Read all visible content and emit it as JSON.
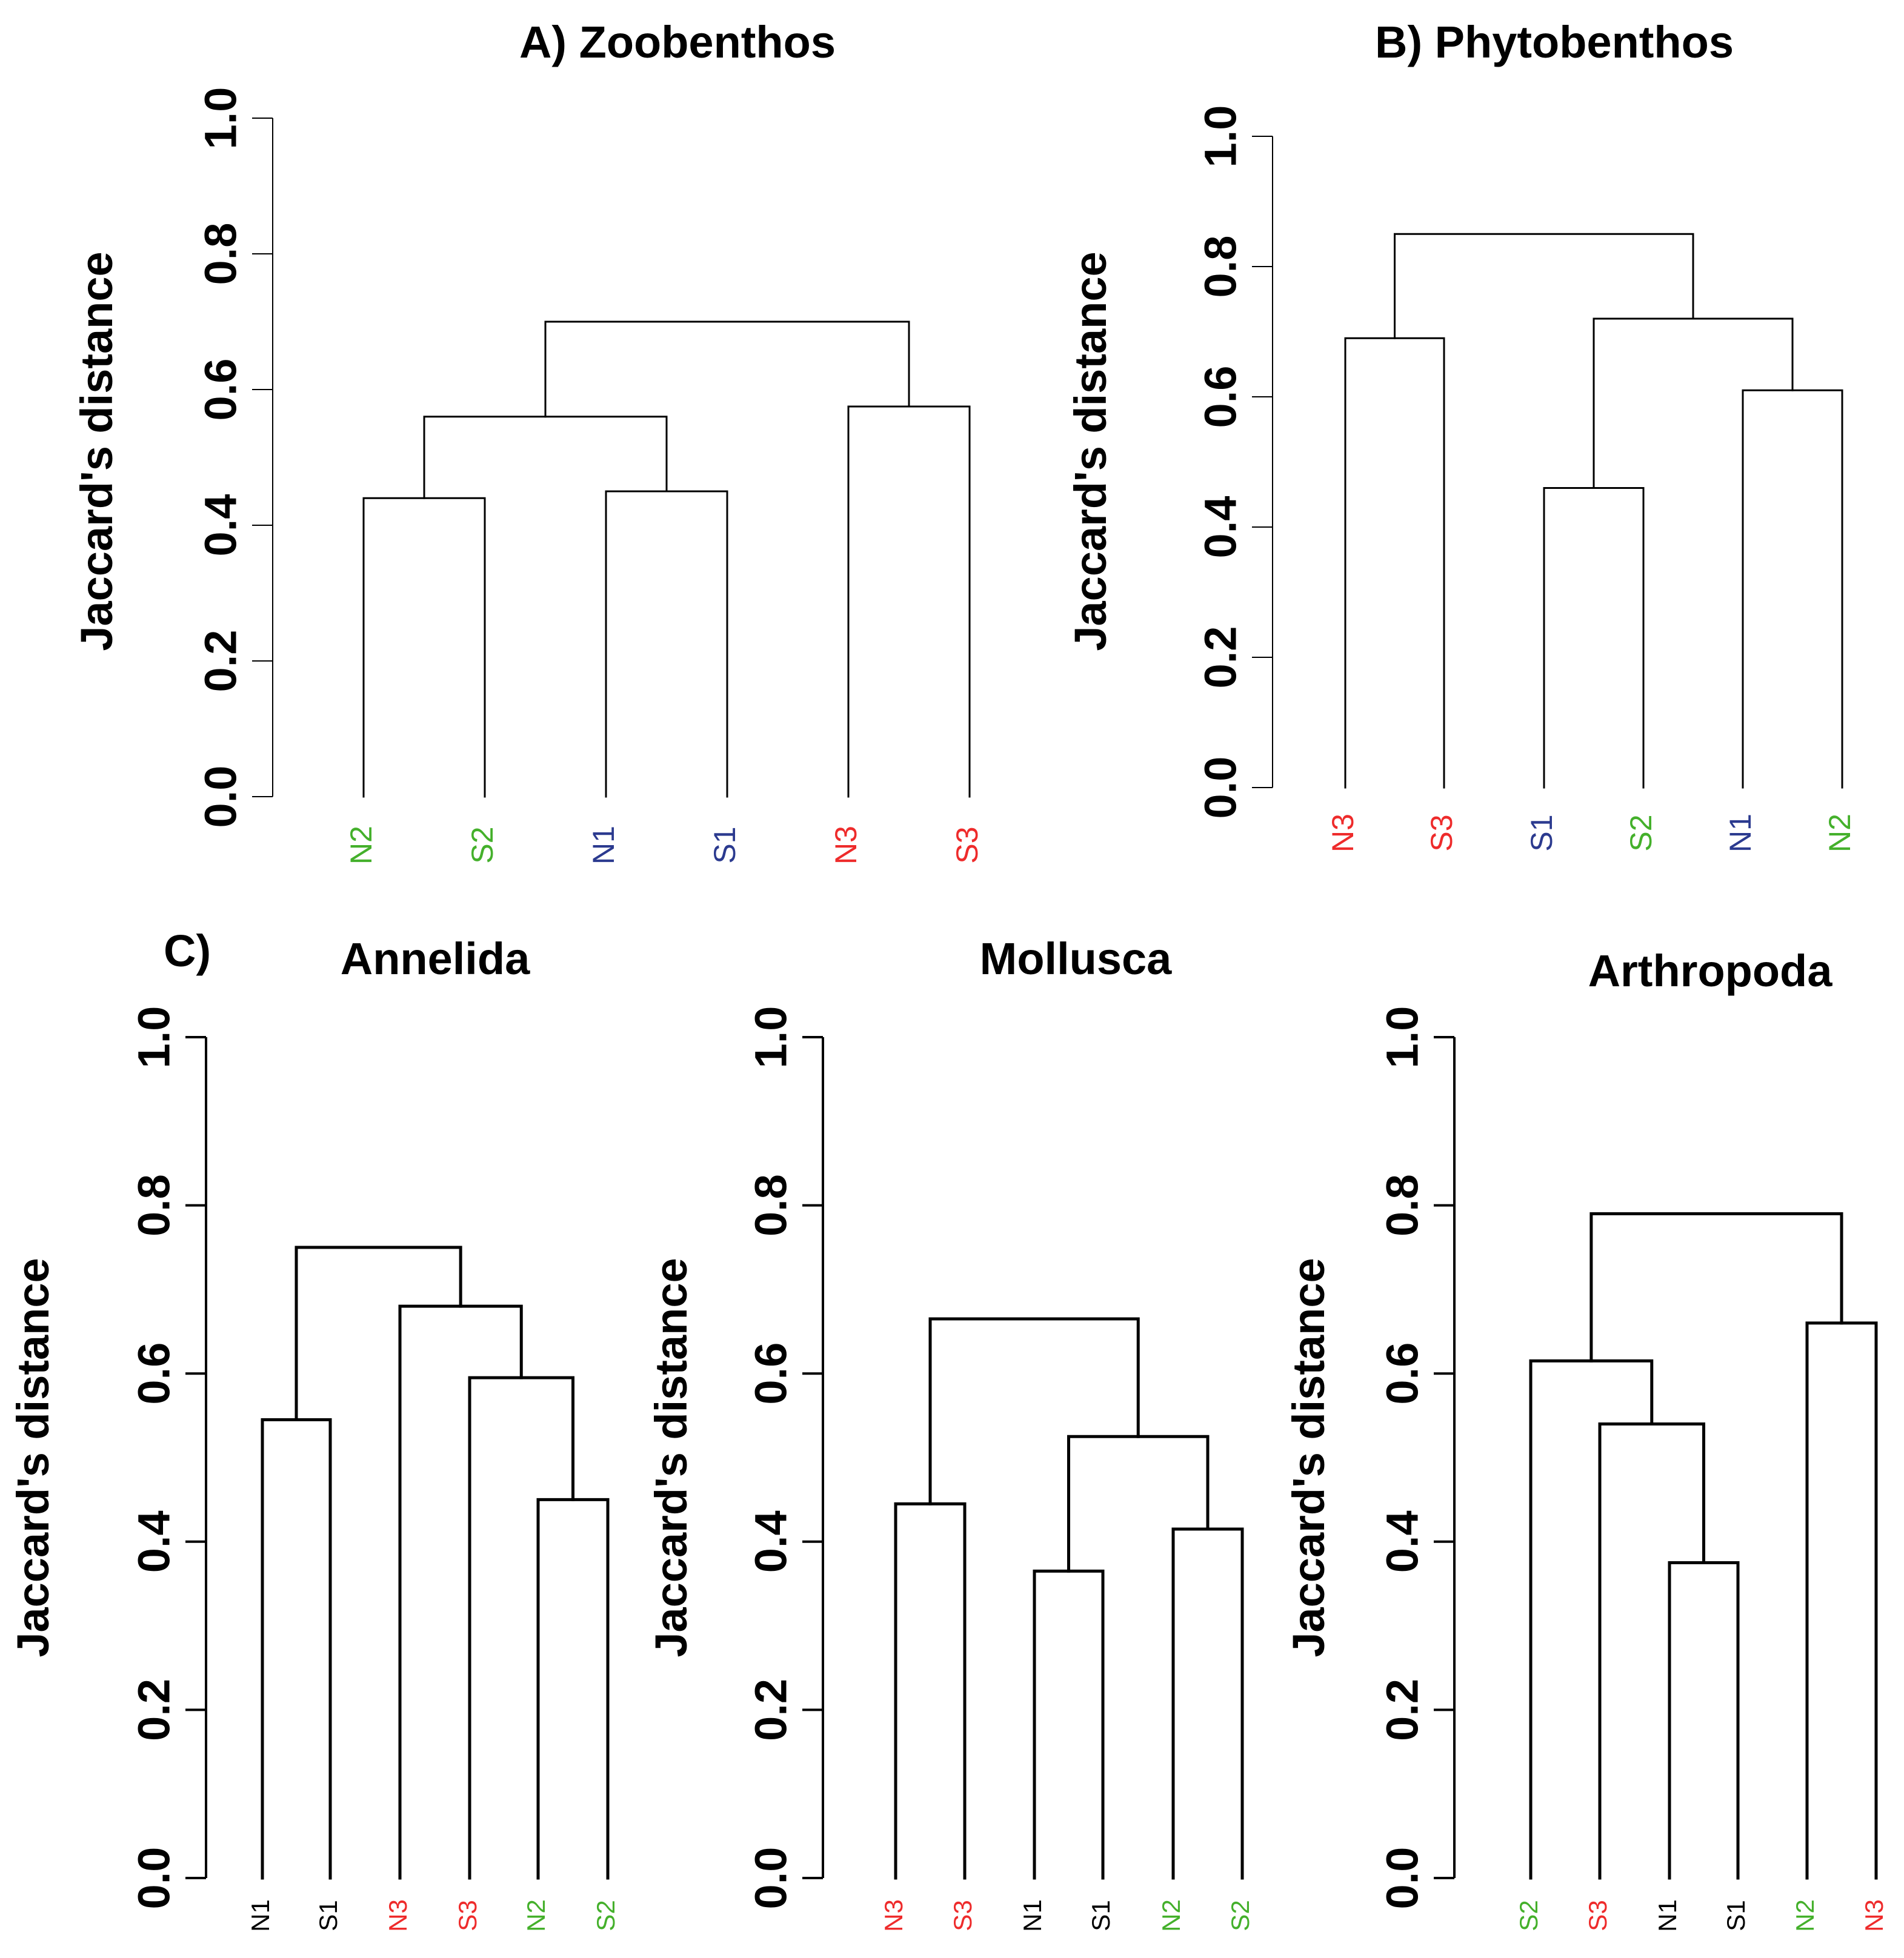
{
  "panel_c_label": "C)",
  "leaf_colors": {
    "blue": "#2b3a8f",
    "green": "#44b02b",
    "red": "#ee2b2b",
    "black": "#000000"
  },
  "chart_data": [
    {
      "id": "A",
      "type": "dendrogram",
      "title": "A) Zoobenthos",
      "ylabel": "Jaccard's distance",
      "ylim": [
        0,
        1
      ],
      "yticks": [
        "0.0",
        "0.2",
        "0.4",
        "0.6",
        "0.8",
        "1.0"
      ],
      "leaves": [
        {
          "label": "N2",
          "color": "green"
        },
        {
          "label": "S2",
          "color": "green"
        },
        {
          "label": "N1",
          "color": "blue"
        },
        {
          "label": "S1",
          "color": "blue"
        },
        {
          "label": "N3",
          "color": "red"
        },
        {
          "label": "S3",
          "color": "red"
        }
      ],
      "merges": [
        {
          "a": 0,
          "b": 1,
          "height": 0.44
        },
        {
          "a": 2,
          "b": 3,
          "height": 0.45
        },
        {
          "a": 4,
          "b": 5,
          "height": 0.575
        },
        {
          "a": "m0",
          "b": "m1",
          "height": 0.56
        },
        {
          "a": "m3",
          "b": "m2",
          "height": 0.7
        }
      ]
    },
    {
      "id": "B",
      "type": "dendrogram",
      "title": "B) Phytobenthos",
      "ylabel": "Jaccard's distance",
      "ylim": [
        0,
        1
      ],
      "yticks": [
        "0.0",
        "0.2",
        "0.4",
        "0.6",
        "0.8",
        "1.0"
      ],
      "leaves": [
        {
          "label": "N3",
          "color": "red"
        },
        {
          "label": "S3",
          "color": "red"
        },
        {
          "label": "S1",
          "color": "blue"
        },
        {
          "label": "S2",
          "color": "green"
        },
        {
          "label": "N1",
          "color": "blue"
        },
        {
          "label": "N2",
          "color": "green"
        }
      ],
      "merges": [
        {
          "a": 2,
          "b": 3,
          "height": 0.46
        },
        {
          "a": 4,
          "b": 5,
          "height": 0.61
        },
        {
          "a": 0,
          "b": 1,
          "height": 0.69
        },
        {
          "a": "m0",
          "b": "m1",
          "height": 0.72
        },
        {
          "a": "m2",
          "b": "m3",
          "height": 0.85
        }
      ]
    },
    {
      "id": "C1",
      "type": "dendrogram",
      "title": "Annelida",
      "ylabel": "Jaccard's distance",
      "ylim": [
        0,
        1
      ],
      "yticks": [
        "0.0",
        "0.2",
        "0.4",
        "0.6",
        "0.8",
        "1.0"
      ],
      "leaves": [
        {
          "label": "N1",
          "color": "black"
        },
        {
          "label": "S1",
          "color": "black"
        },
        {
          "label": "N3",
          "color": "red"
        },
        {
          "label": "S3",
          "color": "red"
        },
        {
          "label": "N2",
          "color": "green"
        },
        {
          "label": "S2",
          "color": "green"
        }
      ],
      "merges": [
        {
          "a": 4,
          "b": 5,
          "height": 0.45
        },
        {
          "a": 0,
          "b": 1,
          "height": 0.545
        },
        {
          "a": 3,
          "b": "m0",
          "height": 0.595
        },
        {
          "a": 2,
          "b": "m2",
          "height": 0.68
        },
        {
          "a": "m1",
          "b": "m3",
          "height": 0.75
        }
      ]
    },
    {
      "id": "C2",
      "type": "dendrogram",
      "title": "Mollusca",
      "ylabel": "Jaccard's distance",
      "ylim": [
        0,
        1
      ],
      "yticks": [
        "0.0",
        "0.2",
        "0.4",
        "0.6",
        "0.8",
        "1.0"
      ],
      "leaves": [
        {
          "label": "N3",
          "color": "red"
        },
        {
          "label": "S3",
          "color": "red"
        },
        {
          "label": "N1",
          "color": "black"
        },
        {
          "label": "S1",
          "color": "black"
        },
        {
          "label": "N2",
          "color": "green"
        },
        {
          "label": "S2",
          "color": "green"
        }
      ],
      "merges": [
        {
          "a": 2,
          "b": 3,
          "height": 0.365
        },
        {
          "a": 4,
          "b": 5,
          "height": 0.415
        },
        {
          "a": 0,
          "b": 1,
          "height": 0.445
        },
        {
          "a": "m0",
          "b": "m1",
          "height": 0.525
        },
        {
          "a": "m2",
          "b": "m3",
          "height": 0.665
        }
      ]
    },
    {
      "id": "C3",
      "type": "dendrogram",
      "title": "Arthropoda",
      "ylabel": "Jaccard's distance",
      "ylim": [
        0,
        1
      ],
      "yticks": [
        "0.0",
        "0.2",
        "0.4",
        "0.6",
        "0.8",
        "1.0"
      ],
      "leaves": [
        {
          "label": "S2",
          "color": "green"
        },
        {
          "label": "S3",
          "color": "red"
        },
        {
          "label": "N1",
          "color": "black"
        },
        {
          "label": "S1",
          "color": "black"
        },
        {
          "label": "N2",
          "color": "green"
        },
        {
          "label": "N3",
          "color": "red"
        }
      ],
      "merges": [
        {
          "a": 2,
          "b": 3,
          "height": 0.375
        },
        {
          "a": 1,
          "b": "m0",
          "height": 0.54
        },
        {
          "a": 0,
          "b": "m1",
          "height": 0.615
        },
        {
          "a": 4,
          "b": 5,
          "height": 0.66
        },
        {
          "a": "m2",
          "b": "m3",
          "height": 0.79
        }
      ]
    }
  ]
}
